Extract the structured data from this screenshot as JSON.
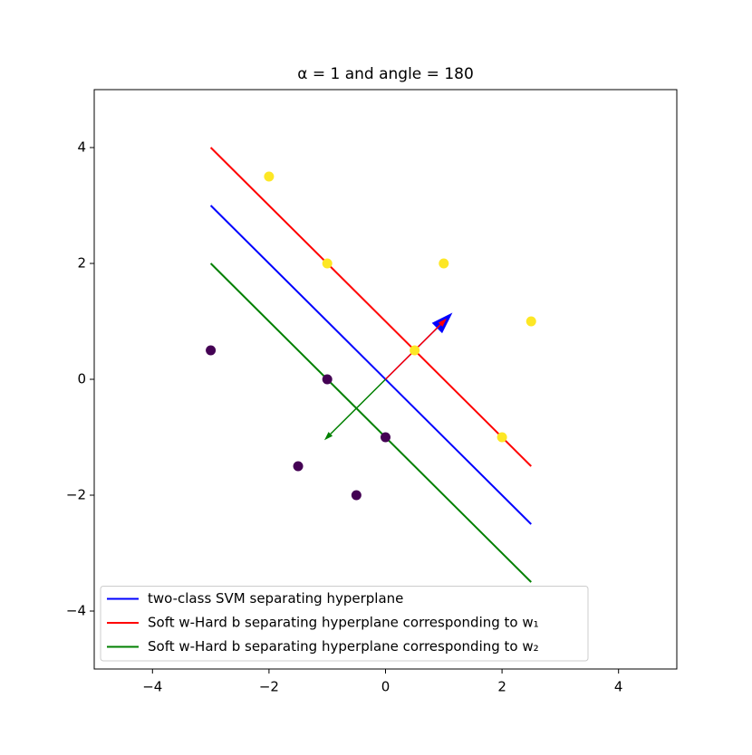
{
  "chart_data": {
    "type": "scatter",
    "title": "α = 1 and angle = 180",
    "xlim": [
      -5,
      5
    ],
    "ylim": [
      -5,
      5
    ],
    "xticks": [
      {
        "value": -4,
        "label": "−4"
      },
      {
        "value": -2,
        "label": "−2"
      },
      0,
      2,
      4
    ],
    "yticks": [
      {
        "value": -4,
        "label": "−4"
      },
      {
        "value": -2,
        "label": "−2"
      },
      0,
      2,
      4
    ],
    "legend": "lower left",
    "lines": [
      {
        "name": "two-class SVM separating hyperplane",
        "color": "#0000ff",
        "x": [
          -3,
          2.5
        ],
        "y": [
          3,
          -2.5
        ]
      },
      {
        "name": "Soft w-Hard b separating hyperplane corresponding to w₁",
        "color": "#ff0000",
        "x": [
          -3,
          2.5
        ],
        "y": [
          4,
          -1.5
        ]
      },
      {
        "name": "Soft w-Hard b separating hyperplane corresponding to w₂",
        "color": "#008000",
        "x": [
          -3,
          2.5
        ],
        "y": [
          2,
          -3.5
        ]
      }
    ],
    "series": [
      {
        "color": "#fde725",
        "x": [
          -2,
          -1,
          1,
          2.5,
          0.5,
          2
        ],
        "y": [
          3.5,
          2,
          2,
          1,
          0.5,
          -1
        ]
      },
      {
        "color": "#440154",
        "x": [
          -3,
          -1,
          0,
          -1.5,
          -0.5
        ],
        "y": [
          0.5,
          0,
          -1,
          -1.5,
          -2
        ]
      }
    ],
    "arrows": [
      {
        "color": "#0000ff",
        "x": [
          0,
          1.15
        ],
        "y": [
          0,
          1.15
        ],
        "head_width": 0.25
      },
      {
        "color": "#ff0000",
        "x": [
          0,
          1.05
        ],
        "y": [
          0,
          1.05
        ],
        "head_width": 0.1
      },
      {
        "color": "#008000",
        "x": [
          0,
          -1.05
        ],
        "y": [
          0,
          -1.05
        ],
        "head_width": 0.1
      }
    ]
  }
}
